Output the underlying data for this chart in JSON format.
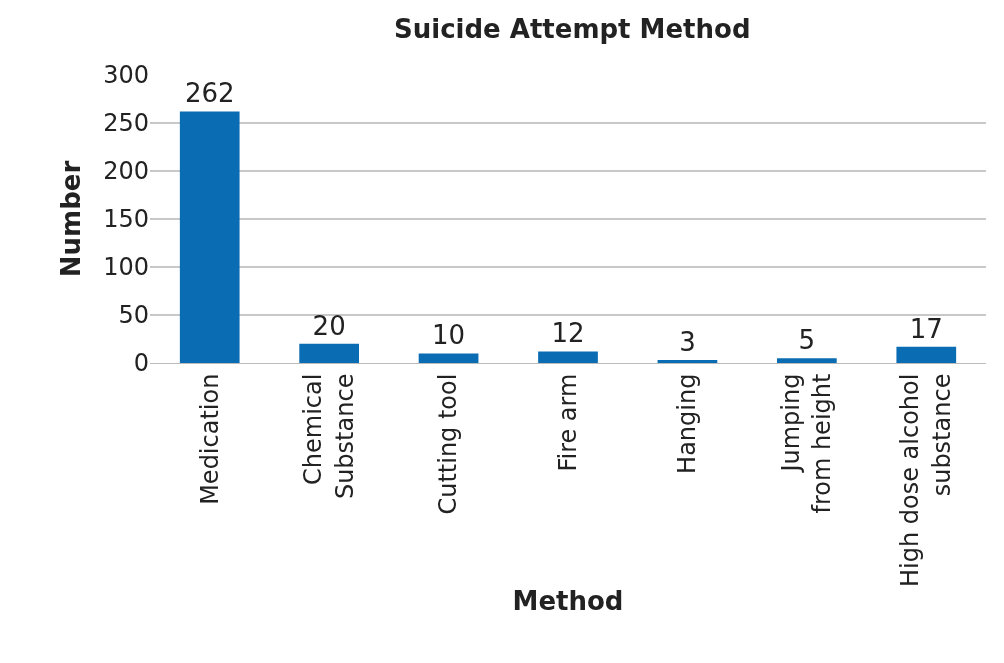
{
  "chart_data": {
    "type": "bar",
    "title": "Suicide Attempt Method",
    "xlabel": "Method",
    "ylabel": "Number",
    "categories": [
      "Medication",
      "Chemical\nSubstance",
      "Cutting tool",
      "Fire arm",
      "Hanging",
      "Jumping\nfrom height",
      "High dose alcohol\nsubstance"
    ],
    "values": [
      262,
      20,
      10,
      12,
      3,
      5,
      17
    ],
    "color": "#0a6cb2",
    "ylim": [
      0,
      300
    ],
    "yticks": [
      0,
      50,
      100,
      150,
      200,
      250,
      300
    ],
    "grid": "y",
    "data_labels": true,
    "legend": false
  }
}
